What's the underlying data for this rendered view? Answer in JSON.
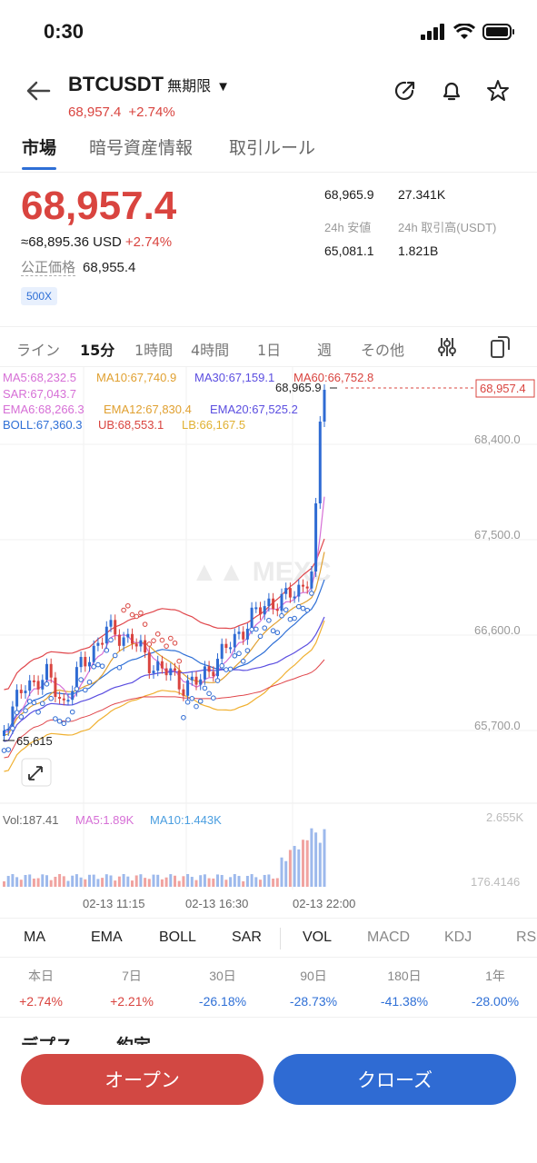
{
  "status": {
    "time": "0:30"
  },
  "header": {
    "pair": "BTCUSDT",
    "contract": "無期限",
    "price": "68,957.4",
    "change": "+2.74%"
  },
  "tabs": [
    "市場",
    "暗号資産情報",
    "取引ルール"
  ],
  "market": {
    "price": "68,957.4",
    "approx": "≈68,895.36",
    "currency": "USD",
    "change": "+2.74%",
    "fair_label": "公正価格",
    "fair_value": "68,955.4",
    "leverage": "500X",
    "high_value": "68,965.9",
    "vol_btc_value": "27.341K",
    "low_label": "24h 安値",
    "turnover_label": "24h 取引高(USDT)",
    "low_value": "65,081.1",
    "turnover_value": "1.821B"
  },
  "timeframes": [
    "ライン",
    "15分",
    "1時間",
    "4時間",
    "1日",
    "週",
    "その他"
  ],
  "chart_legend": {
    "ma5": "MA5:68,232.5",
    "ma10": "MA10:67,740.9",
    "ma30": "MA30:67,159.1",
    "ma60": "MA60:66,752.8",
    "sar": "SAR:67,043.7",
    "ema6": "EMA6:68,266.3",
    "ema12": "EMA12:67,830.4",
    "ema20": "EMA20:67,525.2",
    "boll": "BOLL:67,360.3",
    "ub": "UB:68,553.1",
    "lb": "LB:66,167.5",
    "vol": "Vol:187.41",
    "vol_ma5": "MA5:1.89K",
    "vol_ma10": "MA10:1.443K"
  },
  "chart_labels": {
    "high_marker": "68,965.9",
    "low_marker": "65,615",
    "last_price_tag": "68,957.4",
    "vol_max": "2.655K",
    "vol_min": "176.4146"
  },
  "chart_data": {
    "type": "candlestick",
    "y_ticks": [
      "68,400.0",
      "67,500.0",
      "66,600.0",
      "65,700.0"
    ],
    "x_ticks": [
      "02-13 11:15",
      "02-13 16:30",
      "02-13 22:00"
    ],
    "last_price": 68957.4,
    "high": 68965.9,
    "low": 65615,
    "colors": {
      "up": "#2f6bd3",
      "down": "#d9443f"
    }
  },
  "indicators": [
    "MA",
    "EMA",
    "BOLL",
    "SAR",
    "VOL",
    "MACD",
    "KDJ",
    "RS"
  ],
  "performance": [
    {
      "label": "本日",
      "value": "+2.74%"
    },
    {
      "label": "7日",
      "value": "+2.21%"
    },
    {
      "label": "30日",
      "value": "-26.18%"
    },
    {
      "label": "90日",
      "value": "-28.73%"
    },
    {
      "label": "180日",
      "value": "-41.38%"
    },
    {
      "label": "1年",
      "value": "-28.00%"
    }
  ],
  "bottom_tabs": [
    "デプス",
    "約定"
  ],
  "actions": {
    "open": "オープン",
    "close": "クローズ"
  }
}
